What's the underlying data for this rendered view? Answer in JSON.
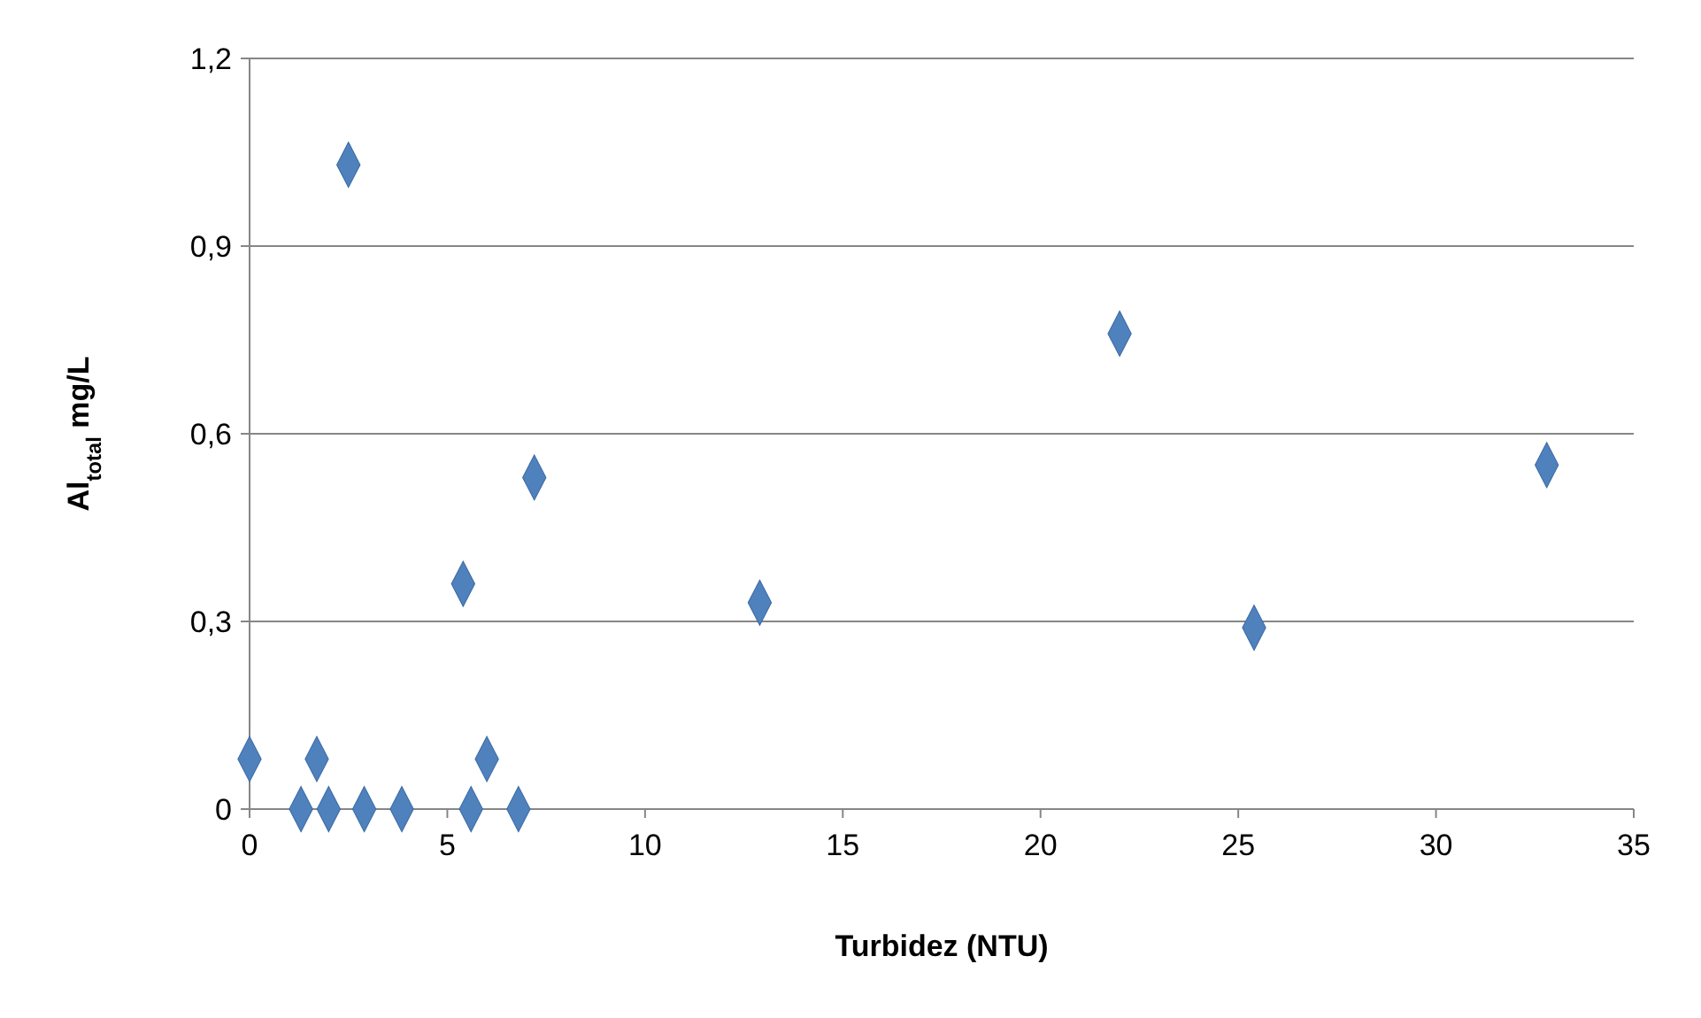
{
  "chart_data": {
    "type": "scatter",
    "xlabel": "Turbidez (NTU)",
    "ylabel": "Al$_{total}$ mg/L",
    "xlim": [
      0,
      35
    ],
    "xticks": [
      0,
      5,
      10,
      15,
      20,
      25,
      30,
      35
    ],
    "ylim": [
      0,
      1.2
    ],
    "yticks": [
      0,
      {
        "value": 0.3,
        "label": "0,3"
      },
      {
        "value": 0.6,
        "label": "0,6"
      },
      {
        "value": 0.9,
        "label": "0,9"
      },
      {
        "value": 1.2,
        "label": "1,2"
      }
    ],
    "grid": "y",
    "marker": "diamond",
    "series": [
      {
        "color": "#4f81bd",
        "x": [
          0,
          1.3,
          1.7,
          2.0,
          2.5,
          2.9,
          3.85,
          5.4,
          5.6,
          6.0,
          6.8,
          7.2,
          12.9,
          22.0,
          25.4,
          32.8
        ],
        "values": [
          0.08,
          0,
          0.08,
          0,
          1.03,
          0,
          0,
          0.36,
          0,
          0.08,
          0,
          0.53,
          0.33,
          0.76,
          0.29,
          0.55
        ]
      }
    ]
  }
}
